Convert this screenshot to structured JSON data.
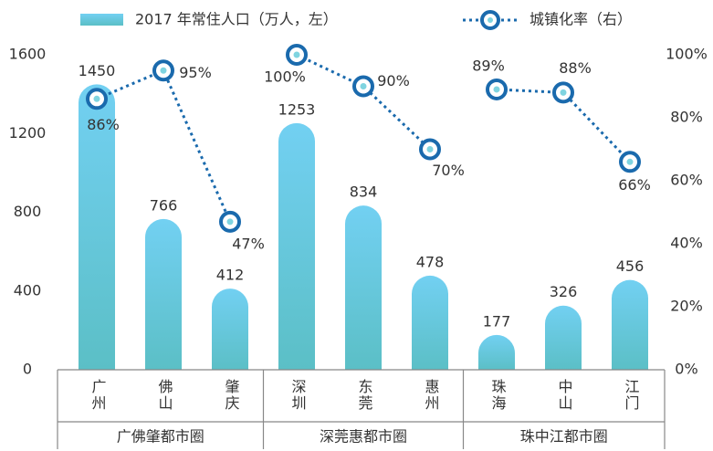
{
  "chart_data": {
    "type": "bar",
    "legend": {
      "bar": "2017 年常住人口（万人，左）",
      "line": "城镇化率（右）"
    },
    "categories": [
      "广州",
      "佛山",
      "肇庆",
      "深圳",
      "东莞",
      "惠州",
      "珠海",
      "中山",
      "江门"
    ],
    "groups": [
      {
        "name": "广佛肇都市圈",
        "size": 3
      },
      {
        "name": "深莞惠都市圈",
        "size": 3
      },
      {
        "name": "珠中江都市圈",
        "size": 3
      }
    ],
    "series": [
      {
        "name": "2017 年常住人口（万人，左）",
        "type": "bar",
        "color": "#6ccdf0",
        "values": [
          1450,
          766,
          412,
          1253,
          834,
          478,
          177,
          326,
          456
        ]
      },
      {
        "name": "城镇化率（右）",
        "type": "line",
        "axis": "y2",
        "color": "#1a6aad",
        "values": [
          86,
          95,
          47,
          100,
          90,
          70,
          89,
          88,
          66
        ],
        "value_labels": [
          "86%",
          "95%",
          "47%",
          "100%",
          "90%",
          "70%",
          "89%",
          "88%",
          "66%"
        ]
      }
    ],
    "ylim": [
      0,
      1600
    ],
    "yticks": [
      0,
      400,
      800,
      1200,
      1600
    ],
    "y2lim": [
      0,
      100
    ],
    "y2ticks": [
      {
        "value": 0,
        "label": "0%"
      },
      {
        "value": 20,
        "label": "20%"
      },
      {
        "value": 40,
        "label": "40%"
      },
      {
        "value": 60,
        "label": "60%"
      },
      {
        "value": 80,
        "label": "80%"
      },
      {
        "value": 100,
        "label": "100%"
      }
    ]
  }
}
